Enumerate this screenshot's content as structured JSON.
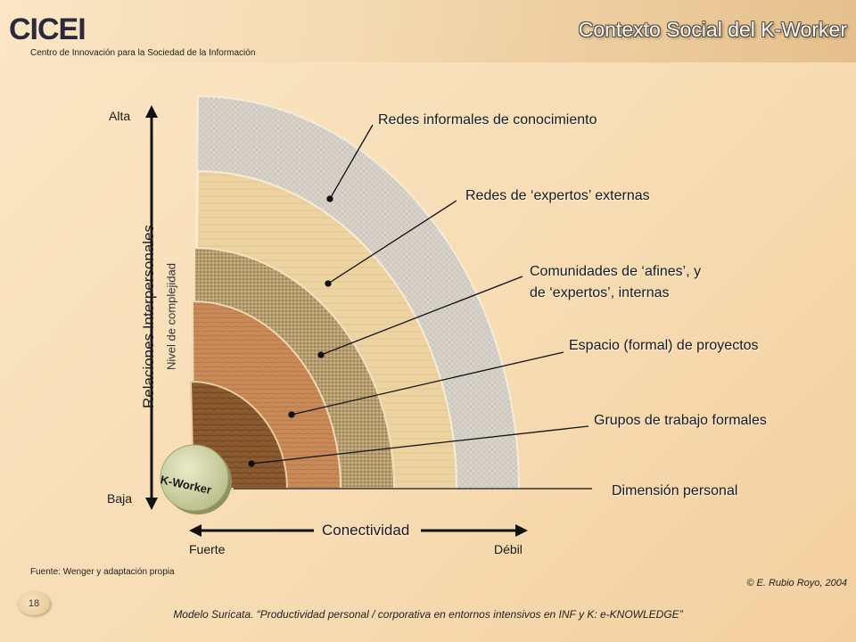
{
  "header": {
    "logo_text": "CICEI",
    "tagline": "Centro de Innovación para la Sociedad de la Información",
    "title": "Contexto Social del K-Worker"
  },
  "diagram": {
    "layers": [
      {
        "label": "Redes informales de conocimiento",
        "color": "#d9d4cc"
      },
      {
        "label": "Redes de ‘expertos’ externas",
        "color": "#ecd3a1"
      },
      {
        "label": "Comunidades de ‘afines’, y",
        "label_line2": "de ‘expertos’, internas",
        "color": "#b79e6f"
      },
      {
        "label": "Espacio (formal) de proyectos",
        "color": "#c98a58"
      },
      {
        "label": "Grupos de trabajo formales",
        "color": "#8b5a2f"
      },
      {
        "label": "Dimensión personal"
      }
    ],
    "center_label": "K-Worker"
  },
  "axes": {
    "y_title": "Relaciones Interpersonales",
    "y_subtitle": "Nivel de complejidad",
    "y_top": "Alta",
    "y_bottom": "Baja",
    "x_title": "Conectividad",
    "x_left": "Fuerte",
    "x_right": "Débil"
  },
  "footer": {
    "source": "Fuente: Wenger y adaptación propia",
    "copyright": "© E. Rubio Royo, 2004",
    "page": "18",
    "note": "Modelo Suricata. “Productividad personal / corporativa en entornos intensivos en INF y K: e-KNOWLEDGE”"
  }
}
